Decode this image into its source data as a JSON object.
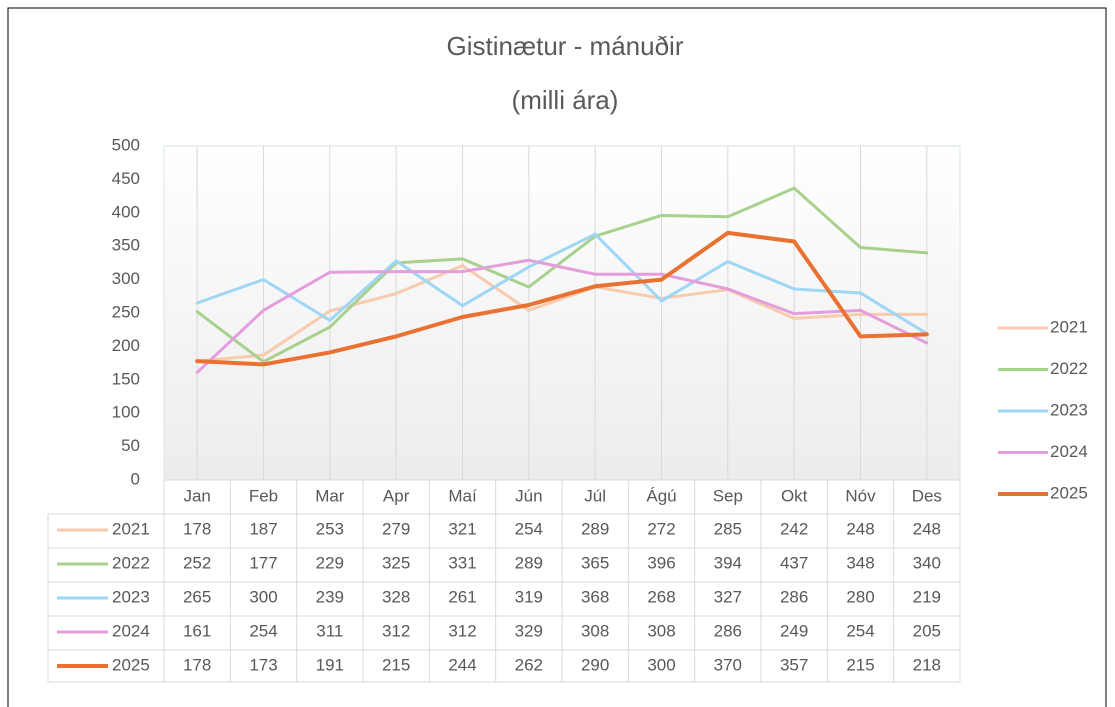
{
  "chart_data": {
    "type": "line",
    "title": "Gistinætur - mánuðir",
    "subtitle": "(milli ára)",
    "categories": [
      "Jan",
      "Feb",
      "Mar",
      "Apr",
      "Maí",
      "Jún",
      "Júl",
      "Ágú",
      "Sep",
      "Okt",
      "Nóv",
      "Des"
    ],
    "series": [
      {
        "name": "2021",
        "color": "#f8cbad",
        "values": [
          178,
          187,
          253,
          279,
          321,
          254,
          289,
          272,
          285,
          242,
          248,
          248
        ]
      },
      {
        "name": "2022",
        "color": "#a9d18e",
        "values": [
          252,
          177,
          229,
          325,
          331,
          289,
          365,
          396,
          394,
          437,
          348,
          340
        ]
      },
      {
        "name": "2023",
        "color": "#9dd7f5",
        "values": [
          265,
          300,
          239,
          328,
          261,
          319,
          368,
          268,
          327,
          286,
          280,
          219
        ]
      },
      {
        "name": "2024",
        "color": "#e49edd",
        "values": [
          161,
          254,
          311,
          312,
          312,
          329,
          308,
          308,
          286,
          249,
          254,
          205
        ]
      },
      {
        "name": "2025",
        "color": "#e97132",
        "values": [
          178,
          173,
          191,
          215,
          244,
          262,
          290,
          300,
          370,
          357,
          215,
          218
        ]
      }
    ],
    "ylim": [
      0,
      500
    ],
    "yticks": [
      0,
      50,
      100,
      150,
      200,
      250,
      300,
      350,
      400,
      450,
      500
    ],
    "grid": "x",
    "legend": "right",
    "data_table": true
  }
}
